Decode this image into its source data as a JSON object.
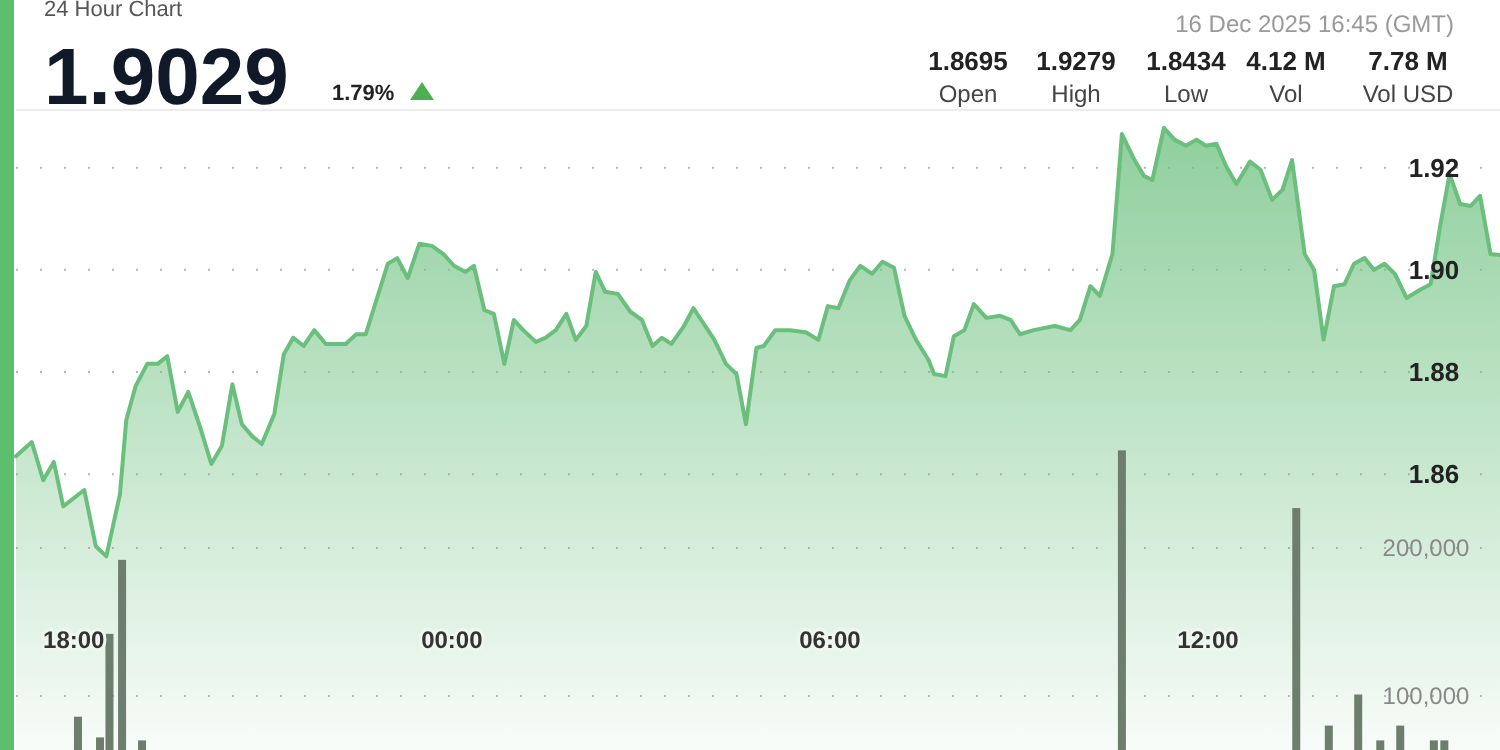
{
  "chart_data": {
    "type": "area",
    "title": "24 Hour Chart",
    "subtitle": "1.9029",
    "annotations": [
      "1.79%",
      "16 Dec 2025 16:45 (GMT)",
      "1.8695",
      "Open",
      "1.9279",
      "High",
      "1.8434",
      "Low",
      "4.12 M",
      "Vol",
      "7.78 M",
      "Vol USD"
    ],
    "xlim": [
      "2025-12-15T17:05",
      "2025-12-16T16:38"
    ],
    "xticks": [
      {
        "value": "2025-12-15T18:00",
        "label": "18:00"
      },
      {
        "value": "2025-12-16T00:00",
        "label": "00:00"
      },
      {
        "value": "2025-12-16T06:00",
        "label": "06:00"
      },
      {
        "value": "2025-12-16T12:00",
        "label": "12:00"
      }
    ],
    "ylim": [
      1.806,
      1.9313
    ],
    "yticks": [
      1.86,
      1.88,
      {
        "value": 1.9,
        "label": "1.90"
      },
      1.92
    ],
    "y2lim": [
      63500,
      496000
    ],
    "y2ticks": [
      {
        "value": 100000,
        "label": "100,000"
      },
      {
        "value": 200000,
        "label": "200,000"
      }
    ],
    "grid": true,
    "series": [
      {
        "color": "#6abf7c",
        "x": [
          "2025-12-15T17:05",
          "2025-12-15T17:20",
          "2025-12-15T17:31",
          "2025-12-15T17:41",
          "2025-12-15T17:50",
          "2025-12-15T18:10",
          "2025-12-15T18:21",
          "2025-12-15T18:31",
          "2025-12-15T18:44",
          "2025-12-15T18:50",
          "2025-12-15T18:59",
          "2025-12-15T19:10",
          "2025-12-15T19:20",
          "2025-12-15T19:29",
          "2025-12-15T19:39",
          "2025-12-15T19:49",
          "2025-12-15T20:00",
          "2025-12-15T20:11",
          "2025-12-15T20:21",
          "2025-12-15T20:31",
          "2025-12-15T20:40",
          "2025-12-15T20:50",
          "2025-12-15T20:59",
          "2025-12-15T21:11",
          "2025-12-15T21:20",
          "2025-12-15T21:29",
          "2025-12-15T21:39",
          "2025-12-15T21:49",
          "2025-12-15T22:00",
          "2025-12-15T22:19",
          "2025-12-15T22:29",
          "2025-12-15T22:38",
          "2025-12-15T22:59",
          "2025-12-15T23:08",
          "2025-12-15T23:18",
          "2025-12-15T23:29",
          "2025-12-15T23:41",
          "2025-12-15T23:52",
          "2025-12-16T00:02",
          "2025-12-16T00:13",
          "2025-12-16T00:21",
          "2025-12-16T00:31",
          "2025-12-16T00:40",
          "2025-12-16T00:50",
          "2025-12-16T00:59",
          "2025-12-16T01:08",
          "2025-12-16T01:20",
          "2025-12-16T01:29",
          "2025-12-16T01:39",
          "2025-12-16T01:49",
          "2025-12-16T01:58",
          "2025-12-16T02:08",
          "2025-12-16T02:17",
          "2025-12-16T02:26",
          "2025-12-16T02:38",
          "2025-12-16T02:50",
          "2025-12-16T03:01",
          "2025-12-16T03:11",
          "2025-12-16T03:20",
          "2025-12-16T03:29",
          "2025-12-16T03:41",
          "2025-12-16T03:50",
          "2025-12-16T04:00",
          "2025-12-16T04:10",
          "2025-12-16T04:21",
          "2025-12-16T04:31",
          "2025-12-16T04:40",
          "2025-12-16T04:50",
          "2025-12-16T04:57",
          "2025-12-16T05:08",
          "2025-12-16T05:22",
          "2025-12-16T05:37",
          "2025-12-16T05:49",
          "2025-12-16T05:58",
          "2025-12-16T06:08",
          "2025-12-16T06:19",
          "2025-12-16T06:29",
          "2025-12-16T06:40",
          "2025-12-16T06:50",
          "2025-12-16T07:01",
          "2025-12-16T07:11",
          "2025-12-16T07:22",
          "2025-12-16T07:34",
          "2025-12-16T07:39",
          "2025-12-16T07:50",
          "2025-12-16T07:58",
          "2025-12-16T08:08",
          "2025-12-16T08:17",
          "2025-12-16T08:29",
          "2025-12-16T08:42",
          "2025-12-16T08:52",
          "2025-12-16T09:01",
          "2025-12-16T09:14",
          "2025-12-16T09:34",
          "2025-12-16T09:49",
          "2025-12-16T09:58",
          "2025-12-16T10:08",
          "2025-12-16T10:17",
          "2025-12-16T10:29",
          "2025-12-16T10:38",
          "2025-12-16T10:50",
          "2025-12-16T10:59",
          "2025-12-16T11:07",
          "2025-12-16T11:18",
          "2025-12-16T11:28",
          "2025-12-16T11:39",
          "2025-12-16T11:49",
          "2025-12-16T11:58",
          "2025-12-16T12:08",
          "2025-12-16T12:17",
          "2025-12-16T12:27",
          "2025-12-16T12:40",
          "2025-12-16T12:50",
          "2025-12-16T13:01",
          "2025-12-16T13:11",
          "2025-12-16T13:20",
          "2025-12-16T13:32",
          "2025-12-16T13:41",
          "2025-12-16T13:50",
          "2025-12-16T14:00",
          "2025-12-16T14:10",
          "2025-12-16T14:19",
          "2025-12-16T14:29",
          "2025-12-16T14:38",
          "2025-12-16T14:48",
          "2025-12-16T14:58",
          "2025-12-16T15:09",
          "2025-12-16T15:22",
          "2025-12-16T15:32",
          "2025-12-16T15:41",
          "2025-12-16T15:50",
          "2025-12-16T16:00",
          "2025-12-16T16:10",
          "2025-12-16T16:19",
          "2025-12-16T16:29",
          "2025-12-16T16:38"
        ],
        "values": [
          1.8635,
          1.8663,
          1.8588,
          1.8624,
          1.8537,
          1.8569,
          1.8459,
          1.8439,
          1.8561,
          1.8706,
          1.8773,
          1.8816,
          1.8816,
          1.8831,
          1.8722,
          1.8761,
          1.8694,
          1.862,
          1.8655,
          1.8776,
          1.8698,
          1.8674,
          1.8659,
          1.8718,
          1.8835,
          1.8867,
          1.8851,
          1.8882,
          1.8855,
          1.8855,
          1.8874,
          1.8874,
          1.9012,
          1.9023,
          1.8984,
          1.9051,
          1.9047,
          1.9031,
          1.9008,
          1.8996,
          1.9008,
          1.8921,
          1.8914,
          1.8816,
          1.8902,
          1.8882,
          1.8859,
          1.8867,
          1.8882,
          1.8914,
          1.8863,
          1.889,
          1.8996,
          1.8957,
          1.8953,
          1.8918,
          1.8902,
          1.8851,
          1.8867,
          1.8855,
          1.889,
          1.8925,
          1.8894,
          1.8863,
          1.8816,
          1.8796,
          1.8698,
          1.8847,
          1.8851,
          1.8882,
          1.8882,
          1.8878,
          1.8863,
          1.8929,
          1.8925,
          1.898,
          1.9008,
          1.8992,
          1.9016,
          1.9004,
          1.891,
          1.8863,
          1.8823,
          1.8796,
          1.8792,
          1.887,
          1.8882,
          1.8933,
          1.8906,
          1.891,
          1.8902,
          1.8874,
          1.8882,
          1.889,
          1.8882,
          1.8902,
          1.8968,
          1.8949,
          1.9031,
          1.9266,
          1.9215,
          1.9184,
          1.9176,
          1.9278,
          1.9255,
          1.9243,
          1.9255,
          1.9243,
          1.9247,
          1.9204,
          1.9168,
          1.9212,
          1.9196,
          1.9137,
          1.9157,
          1.9215,
          1.9031,
          1.9,
          1.8863,
          1.8968,
          1.8972,
          1.9012,
          1.9023,
          1.9,
          1.9012,
          1.8992,
          1.8945,
          1.8961,
          1.8972,
          1.9086,
          1.9188,
          1.9129,
          1.9125,
          1.9145,
          1.9031,
          1.9029
        ]
      },
      {
        "type": "bar",
        "axis": "y2",
        "color": "#6e7e6e",
        "x": [
          "2025-12-15T18:04",
          "2025-12-15T18:25",
          "2025-12-15T18:34",
          "2025-12-15T18:46",
          "2025-12-15T19:05",
          "2025-12-16T10:38",
          "2025-12-16T13:24",
          "2025-12-16T13:55",
          "2025-12-16T14:23",
          "2025-12-16T14:44",
          "2025-12-16T15:03",
          "2025-12-16T15:35",
          "2025-12-16T15:45"
        ],
        "values": [
          86000,
          72000,
          142000,
          192000,
          70000,
          266000,
          227000,
          80000,
          101000,
          70000,
          80000,
          70000,
          70000
        ]
      }
    ]
  }
}
